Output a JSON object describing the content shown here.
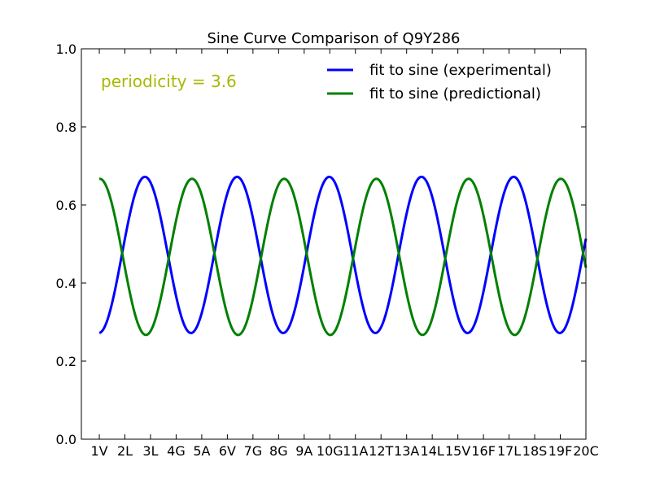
{
  "chart_data": {
    "type": "line",
    "title": "Sine Curve Comparison of Q9Y286",
    "xlabel": "",
    "ylabel": "",
    "categories": [
      "1V",
      "2L",
      "3L",
      "4G",
      "5A",
      "6V",
      "7G",
      "8G",
      "9A",
      "10G",
      "11A",
      "12T",
      "13A",
      "14L",
      "15V",
      "16F",
      "17L",
      "18S",
      "19F",
      "20C"
    ],
    "xlim": [
      0,
      19
    ],
    "ylim": [
      0.0,
      1.0
    ],
    "yticks": [
      "0.0",
      "0.2",
      "0.4",
      "0.6",
      "0.8",
      "1.0"
    ],
    "grid": false,
    "legend_position": "top-right",
    "annotation": {
      "text": "periodicity = 3.6",
      "color": "#a8b800"
    },
    "series": [
      {
        "name": "fit to sine (experimental)",
        "color": "#0000ff",
        "function": "sine",
        "offset": 0.472,
        "amplitude": 0.2,
        "period": 3.6,
        "phase_deg": 272,
        "x_range": [
          0,
          19
        ]
      },
      {
        "name": "fit to sine (predictional)",
        "color": "#008000",
        "function": "sine",
        "offset": 0.467,
        "amplitude": 0.2,
        "period": 3.6,
        "phase_deg": 88,
        "x_range": [
          0,
          19
        ]
      }
    ]
  }
}
